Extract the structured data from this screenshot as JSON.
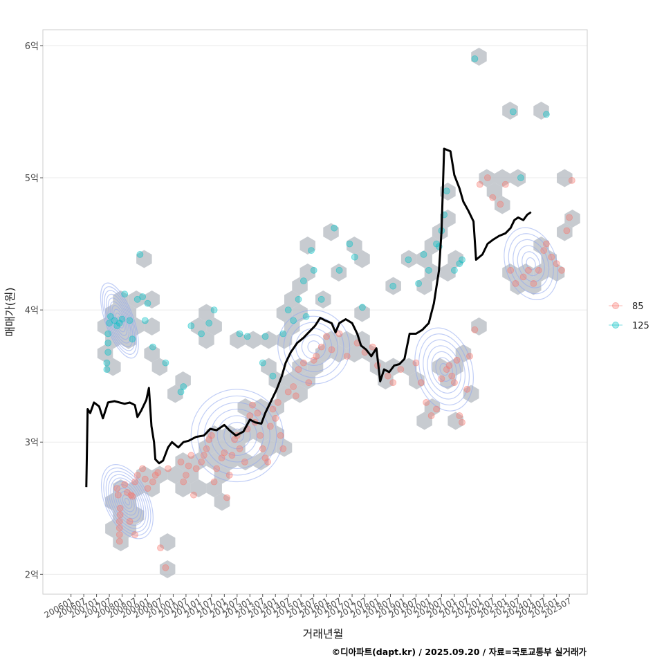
{
  "chart_data": {
    "type": "scatter",
    "xlabel": "거래년월",
    "ylabel": "매매가(원)",
    "caption": "©디아파트(dapt.kr) / 2025.09.20 / 자료=국토교통부 실거래가",
    "x_tick_labels": [
      "200601",
      "200607",
      "200701",
      "200707",
      "200801",
      "200807",
      "200901",
      "200907",
      "201001",
      "201007",
      "201101",
      "201107",
      "201201",
      "201207",
      "201301",
      "201307",
      "201401",
      "201407",
      "201501",
      "201507",
      "201601",
      "201607",
      "201701",
      "201707",
      "201801",
      "201807",
      "201901",
      "201907",
      "202001",
      "202007",
      "202101",
      "202107",
      "202201",
      "202207",
      "202301",
      "202307",
      "202401",
      "202407",
      "202501",
      "202507"
    ],
    "y_ticks": [
      2,
      3,
      4,
      5,
      6
    ],
    "y_tick_labels": [
      "2억",
      "3억",
      "4억",
      "5억",
      "6억"
    ],
    "ylim": [
      1.85,
      6.12
    ],
    "xlim": [
      2004.9,
      2026.2
    ],
    "grid": true,
    "legend_position": "right",
    "legend": [
      {
        "label": "85",
        "color": "#F8766D"
      },
      {
        "label": "125",
        "color": "#00BFC4"
      }
    ],
    "series": [
      {
        "name": "85",
        "color": "#F8766D",
        "points": [
          [
            2007.9,
            2.25
          ],
          [
            2007.9,
            2.3
          ],
          [
            2007.9,
            2.35
          ],
          [
            2007.9,
            2.4
          ],
          [
            2007.92,
            2.45
          ],
          [
            2007.92,
            2.5
          ],
          [
            2007.85,
            2.6
          ],
          [
            2007.8,
            2.65
          ],
          [
            2008.1,
            2.68
          ],
          [
            2008.2,
            2.62
          ],
          [
            2008.35,
            2.6
          ],
          [
            2008.4,
            2.59
          ],
          [
            2008.5,
            2.7
          ],
          [
            2008.6,
            2.75
          ],
          [
            2008.3,
            2.4
          ],
          [
            2008.5,
            2.3
          ],
          [
            2008.8,
            2.8
          ],
          [
            2008.9,
            2.72
          ],
          [
            2009.0,
            2.65
          ],
          [
            2009.2,
            2.7
          ],
          [
            2009.3,
            2.75
          ],
          [
            2009.4,
            2.77
          ],
          [
            2009.5,
            2.2
          ],
          [
            2009.7,
            2.05
          ],
          [
            2009.8,
            2.8
          ],
          [
            2010.3,
            2.85
          ],
          [
            2010.4,
            2.7
          ],
          [
            2010.5,
            2.75
          ],
          [
            2010.6,
            2.82
          ],
          [
            2010.7,
            2.9
          ],
          [
            2010.8,
            2.6
          ],
          [
            2010.9,
            2.8
          ],
          [
            2011.1,
            2.85
          ],
          [
            2011.2,
            2.9
          ],
          [
            2011.3,
            2.95
          ],
          [
            2011.4,
            3.02
          ],
          [
            2011.5,
            3.05
          ],
          [
            2011.6,
            2.7
          ],
          [
            2011.7,
            2.8
          ],
          [
            2011.9,
            2.88
          ],
          [
            2012.0,
            2.92
          ],
          [
            2012.1,
            2.58
          ],
          [
            2012.2,
            2.75
          ],
          [
            2012.3,
            2.9
          ],
          [
            2012.4,
            3.02
          ],
          [
            2012.5,
            3.05
          ],
          [
            2012.6,
            2.95
          ],
          [
            2012.8,
            2.85
          ],
          [
            2012.9,
            3.1
          ],
          [
            2013.0,
            3.2
          ],
          [
            2013.1,
            3.28
          ],
          [
            2013.2,
            3.15
          ],
          [
            2013.3,
            3.22
          ],
          [
            2013.4,
            3.05
          ],
          [
            2013.5,
            2.95
          ],
          [
            2013.6,
            2.88
          ],
          [
            2013.7,
            2.85
          ],
          [
            2013.8,
            3.12
          ],
          [
            2013.9,
            3.25
          ],
          [
            2014.0,
            3.18
          ],
          [
            2014.1,
            3.3
          ],
          [
            2014.2,
            3.05
          ],
          [
            2014.3,
            2.95
          ],
          [
            2014.5,
            3.38
          ],
          [
            2014.7,
            3.42
          ],
          [
            2014.8,
            3.35
          ],
          [
            2014.9,
            3.55
          ],
          [
            2015.1,
            3.6
          ],
          [
            2015.3,
            3.45
          ],
          [
            2015.5,
            3.62
          ],
          [
            2015.6,
            3.65
          ],
          [
            2015.8,
            3.72
          ],
          [
            2016.0,
            3.8
          ],
          [
            2016.2,
            3.7
          ],
          [
            2016.5,
            3.82
          ],
          [
            2016.8,
            3.65
          ],
          [
            2017.2,
            3.75
          ],
          [
            2017.5,
            3.68
          ],
          [
            2017.8,
            3.72
          ],
          [
            2018.0,
            3.58
          ],
          [
            2018.4,
            3.5
          ],
          [
            2018.6,
            3.45
          ],
          [
            2018.9,
            3.55
          ],
          [
            2019.5,
            3.6
          ],
          [
            2019.7,
            3.45
          ],
          [
            2019.9,
            3.3
          ],
          [
            2020.1,
            3.2
          ],
          [
            2020.3,
            3.25
          ],
          [
            2020.5,
            3.48
          ],
          [
            2020.7,
            3.55
          ],
          [
            2020.8,
            3.58
          ],
          [
            2020.9,
            3.5
          ],
          [
            2021.0,
            3.45
          ],
          [
            2021.1,
            3.62
          ],
          [
            2021.2,
            3.2
          ],
          [
            2021.3,
            3.15
          ],
          [
            2021.5,
            3.4
          ],
          [
            2021.6,
            3.65
          ],
          [
            2021.8,
            3.85
          ],
          [
            2022.0,
            4.95
          ],
          [
            2022.3,
            5.0
          ],
          [
            2022.5,
            4.85
          ],
          [
            2022.8,
            4.8
          ],
          [
            2023.0,
            4.95
          ],
          [
            2023.2,
            4.3
          ],
          [
            2023.4,
            4.2
          ],
          [
            2023.7,
            4.25
          ],
          [
            2023.9,
            4.3
          ],
          [
            2024.1,
            4.2
          ],
          [
            2024.3,
            4.3
          ],
          [
            2024.5,
            4.45
          ],
          [
            2024.6,
            4.5
          ],
          [
            2024.8,
            4.4
          ],
          [
            2025.0,
            4.35
          ],
          [
            2025.2,
            4.3
          ],
          [
            2025.4,
            4.6
          ],
          [
            2025.5,
            4.7
          ],
          [
            2025.6,
            4.98
          ]
        ]
      },
      {
        "name": "125",
        "color": "#00BFC4",
        "points": [
          [
            2007.4,
            3.55
          ],
          [
            2007.4,
            3.6
          ],
          [
            2007.45,
            3.68
          ],
          [
            2007.45,
            3.75
          ],
          [
            2007.45,
            3.82
          ],
          [
            2007.5,
            3.9
          ],
          [
            2007.55,
            3.95
          ],
          [
            2007.7,
            3.92
          ],
          [
            2007.8,
            3.88
          ],
          [
            2007.9,
            3.9
          ],
          [
            2008.0,
            3.93
          ],
          [
            2008.1,
            4.12
          ],
          [
            2008.3,
            3.92
          ],
          [
            2008.4,
            3.78
          ],
          [
            2008.6,
            4.08
          ],
          [
            2008.7,
            4.42
          ],
          [
            2008.8,
            4.1
          ],
          [
            2008.9,
            3.92
          ],
          [
            2009.0,
            4.05
          ],
          [
            2009.2,
            3.72
          ],
          [
            2009.7,
            3.6
          ],
          [
            2010.3,
            3.38
          ],
          [
            2010.4,
            3.42
          ],
          [
            2010.7,
            3.88
          ],
          [
            2011.1,
            3.82
          ],
          [
            2011.4,
            3.9
          ],
          [
            2011.6,
            4.0
          ],
          [
            2012.6,
            3.82
          ],
          [
            2012.9,
            3.8
          ],
          [
            2013.5,
            3.6
          ],
          [
            2013.6,
            3.8
          ],
          [
            2013.9,
            3.5
          ],
          [
            2014.3,
            3.82
          ],
          [
            2014.5,
            4.0
          ],
          [
            2014.7,
            3.92
          ],
          [
            2014.9,
            4.08
          ],
          [
            2015.1,
            4.22
          ],
          [
            2015.2,
            3.95
          ],
          [
            2015.4,
            4.45
          ],
          [
            2015.5,
            4.3
          ],
          [
            2015.8,
            4.08
          ],
          [
            2016.3,
            4.62
          ],
          [
            2016.5,
            4.3
          ],
          [
            2016.9,
            4.5
          ],
          [
            2017.1,
            4.4
          ],
          [
            2017.4,
            4.02
          ],
          [
            2018.6,
            4.18
          ],
          [
            2019.2,
            4.38
          ],
          [
            2019.6,
            4.2
          ],
          [
            2019.8,
            4.42
          ],
          [
            2020.0,
            4.3
          ],
          [
            2020.3,
            4.5
          ],
          [
            2020.4,
            4.48
          ],
          [
            2020.5,
            4.6
          ],
          [
            2020.6,
            4.72
          ],
          [
            2020.7,
            4.9
          ],
          [
            2021.0,
            4.3
          ],
          [
            2021.2,
            4.35
          ],
          [
            2021.3,
            4.38
          ],
          [
            2021.8,
            5.9
          ],
          [
            2023.3,
            5.5
          ],
          [
            2023.6,
            5.0
          ],
          [
            2024.6,
            5.48
          ]
        ]
      },
      {
        "name": "",
        "type": "line",
        "color": "#000000",
        "points": [
          [
            2006.6,
            2.66
          ],
          [
            2006.65,
            3.25
          ],
          [
            2006.75,
            3.22
          ],
          [
            2006.9,
            3.3
          ],
          [
            2007.1,
            3.27
          ],
          [
            2007.25,
            3.18
          ],
          [
            2007.45,
            3.3
          ],
          [
            2007.7,
            3.31
          ],
          [
            2008.1,
            3.29
          ],
          [
            2008.3,
            3.3
          ],
          [
            2008.5,
            3.28
          ],
          [
            2008.6,
            3.19
          ],
          [
            2008.75,
            3.24
          ],
          [
            2008.95,
            3.32
          ],
          [
            2009.05,
            3.41
          ],
          [
            2009.15,
            3.12
          ],
          [
            2009.25,
            3.0
          ],
          [
            2009.3,
            2.87
          ],
          [
            2009.45,
            2.84
          ],
          [
            2009.6,
            2.86
          ],
          [
            2009.8,
            2.96
          ],
          [
            2009.95,
            3.0
          ],
          [
            2010.2,
            2.96
          ],
          [
            2010.4,
            3.0
          ],
          [
            2010.6,
            3.01
          ],
          [
            2010.9,
            3.04
          ],
          [
            2011.2,
            3.05
          ],
          [
            2011.45,
            3.1
          ],
          [
            2011.7,
            3.09
          ],
          [
            2012.0,
            3.13
          ],
          [
            2012.2,
            3.09
          ],
          [
            2012.45,
            3.05
          ],
          [
            2012.75,
            3.08
          ],
          [
            2013.0,
            3.17
          ],
          [
            2013.2,
            3.15
          ],
          [
            2013.45,
            3.14
          ],
          [
            2013.6,
            3.22
          ],
          [
            2013.85,
            3.32
          ],
          [
            2014.05,
            3.4
          ],
          [
            2014.25,
            3.5
          ],
          [
            2014.4,
            3.6
          ],
          [
            2014.6,
            3.68
          ],
          [
            2014.85,
            3.75
          ],
          [
            2015.1,
            3.79
          ],
          [
            2015.3,
            3.83
          ],
          [
            2015.55,
            3.88
          ],
          [
            2015.75,
            3.94
          ],
          [
            2015.95,
            3.92
          ],
          [
            2016.2,
            3.9
          ],
          [
            2016.35,
            3.83
          ],
          [
            2016.5,
            3.9
          ],
          [
            2016.75,
            3.93
          ],
          [
            2017.0,
            3.9
          ],
          [
            2017.2,
            3.82
          ],
          [
            2017.35,
            3.73
          ],
          [
            2017.55,
            3.7
          ],
          [
            2017.75,
            3.65
          ],
          [
            2017.95,
            3.71
          ],
          [
            2018.1,
            3.46
          ],
          [
            2018.25,
            3.55
          ],
          [
            2018.45,
            3.53
          ],
          [
            2018.65,
            3.58
          ],
          [
            2018.85,
            3.59
          ],
          [
            2019.05,
            3.63
          ],
          [
            2019.25,
            3.82
          ],
          [
            2019.5,
            3.82
          ],
          [
            2019.75,
            3.85
          ],
          [
            2020.0,
            3.9
          ],
          [
            2020.2,
            4.05
          ],
          [
            2020.4,
            4.3
          ],
          [
            2020.5,
            4.6
          ],
          [
            2020.6,
            5.22
          ],
          [
            2020.85,
            5.2
          ],
          [
            2021.0,
            5.02
          ],
          [
            2021.2,
            4.92
          ],
          [
            2021.35,
            4.82
          ],
          [
            2021.55,
            4.75
          ],
          [
            2021.75,
            4.67
          ],
          [
            2021.85,
            4.38
          ],
          [
            2022.1,
            4.42
          ],
          [
            2022.3,
            4.5
          ],
          [
            2022.5,
            4.53
          ],
          [
            2022.75,
            4.56
          ],
          [
            2023.0,
            4.58
          ],
          [
            2023.2,
            4.62
          ],
          [
            2023.35,
            4.68
          ],
          [
            2023.5,
            4.7
          ],
          [
            2023.7,
            4.68
          ],
          [
            2023.85,
            4.72
          ],
          [
            2024.0,
            4.74
          ]
        ]
      }
    ]
  }
}
